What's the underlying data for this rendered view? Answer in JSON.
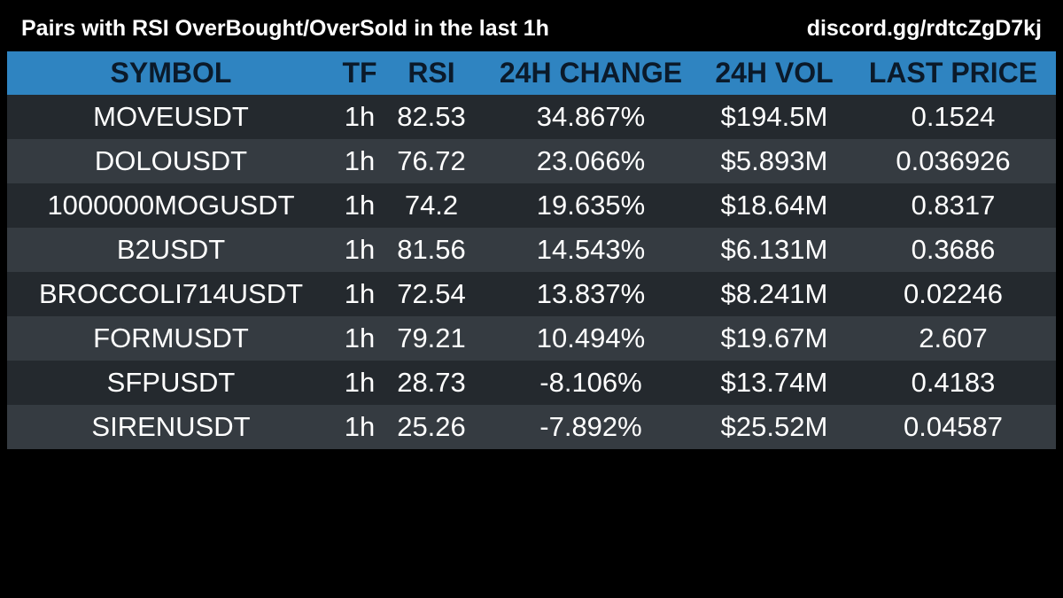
{
  "header": {
    "title": "Pairs with RSI OverBought/OverSold in the last 1h",
    "link": "discord.gg/rdtcZgD7kj"
  },
  "table": {
    "columns": [
      "SYMBOL",
      "TF",
      "RSI",
      "24H CHANGE",
      "24H VOL",
      "LAST PRICE"
    ],
    "rows": [
      [
        "MOVEUSDT",
        "1h",
        "82.53",
        "34.867%",
        "$194.5M",
        "0.1524"
      ],
      [
        "DOLOUSDT",
        "1h",
        "76.72",
        "23.066%",
        "$5.893M",
        "0.036926"
      ],
      [
        "1000000MOGUSDT",
        "1h",
        "74.2",
        "19.635%",
        "$18.64M",
        "0.8317"
      ],
      [
        "B2USDT",
        "1h",
        "81.56",
        "14.543%",
        "$6.131M",
        "0.3686"
      ],
      [
        "BROCCOLI714USDT",
        "1h",
        "72.54",
        "13.837%",
        "$8.241M",
        "0.02246"
      ],
      [
        "FORMUSDT",
        "1h",
        "79.21",
        "10.494%",
        "$19.67M",
        "2.607"
      ],
      [
        "SFPUSDT",
        "1h",
        "28.73",
        "-8.106%",
        "$13.74M",
        "0.4183"
      ],
      [
        "SIRENUSDT",
        "1h",
        "25.26",
        "-7.892%",
        "$25.52M",
        "0.04587"
      ]
    ]
  },
  "colors": {
    "header_bg": "#2f84c1",
    "row_odd": "#24292e",
    "row_even": "#353b41",
    "page_bg": "#000000"
  }
}
